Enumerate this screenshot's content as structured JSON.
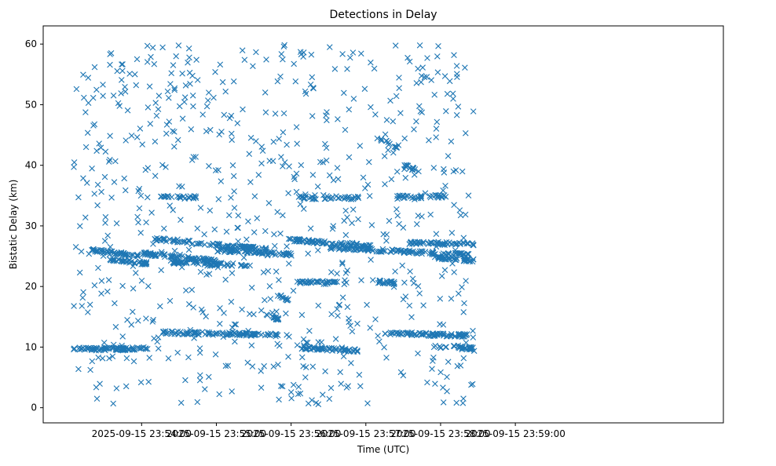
{
  "chart_data": {
    "type": "scatter",
    "title": "Detections in Delay",
    "xlabel": "Time (UTC)",
    "ylabel": "Bistatic Delay (km)",
    "x_unit": "seconds after 2025-09-15 23:54:00 UTC",
    "xlim": [
      -79,
      467
    ],
    "ylim": [
      -2.5,
      63
    ],
    "xticks": [
      0,
      60,
      120,
      180,
      240,
      300
    ],
    "xtick_labels": [
      "2025-09-15 23:54:00",
      "2025-09-15 23:55:00",
      "2025-09-15 23:56:00",
      "2025-09-15 23:57:00",
      "2025-09-15 23:58:00",
      "2025-09-15 23:59:00"
    ],
    "yticks": [
      0,
      10,
      20,
      30,
      40,
      50,
      60
    ],
    "ytick_labels": [
      "0",
      "10",
      "20",
      "30",
      "40",
      "50",
      "60"
    ],
    "marker": "x",
    "color": "#1f77b4",
    "data_range": {
      "t_start": -55,
      "t_end": 267
    },
    "bands": [
      {
        "name": "track-9.7km",
        "t": [
          -55,
          5
        ],
        "delay": [
          9.7,
          9.7
        ],
        "n": 80
      },
      {
        "name": "track-12.3km",
        "t": [
          15,
          110
        ],
        "delay": [
          12.4,
          12.0
        ],
        "n": 100
      },
      {
        "name": "track-9.9km",
        "t": [
          128,
          175
        ],
        "delay": [
          9.9,
          9.4
        ],
        "n": 60
      },
      {
        "name": "track-12.2km",
        "t": [
          195,
          262
        ],
        "delay": [
          12.3,
          11.9
        ],
        "n": 80
      },
      {
        "name": "track-10km-end",
        "t": [
          232,
          267
        ],
        "delay": [
          10.2,
          9.8
        ],
        "n": 30
      },
      {
        "name": "track-23.7km",
        "t": [
          25,
          90
        ],
        "delay": [
          24.0,
          23.5
        ],
        "n": 60
      },
      {
        "name": "track-25.7km",
        "t": [
          60,
          120
        ],
        "delay": [
          26.0,
          25.3
        ],
        "n": 70
      },
      {
        "name": "track-26km-left",
        "t": [
          -40,
          0
        ],
        "delay": [
          26.0,
          25.0
        ],
        "n": 50
      },
      {
        "name": "track-24.5km-left",
        "t": [
          -28,
          5
        ],
        "delay": [
          24.5,
          23.8
        ],
        "n": 40
      },
      {
        "name": "track-27.5km",
        "t": [
          10,
          40
        ],
        "delay": [
          27.8,
          27.4
        ],
        "n": 30
      },
      {
        "name": "track-25km-mid",
        "t": [
          0,
          60
        ],
        "delay": [
          25.5,
          24.2
        ],
        "n": 80
      },
      {
        "name": "track-27km-mid",
        "t": [
          40,
          100
        ],
        "delay": [
          27.2,
          26.2
        ],
        "n": 60
      },
      {
        "name": "track-27.6km",
        "t": [
          115,
          185
        ],
        "delay": [
          27.8,
          26.6
        ],
        "n": 80
      },
      {
        "name": "track-26km-right",
        "t": [
          150,
          265
        ],
        "delay": [
          26.4,
          25.2
        ],
        "n": 110
      },
      {
        "name": "track-27km-right",
        "t": [
          215,
          267
        ],
        "delay": [
          27.2,
          27.0
        ],
        "n": 60
      },
      {
        "name": "track-24.5km-right",
        "t": [
          235,
          267
        ],
        "delay": [
          24.8,
          24.3
        ],
        "n": 40
      },
      {
        "name": "track-20.8km",
        "t": [
          125,
          165
        ],
        "delay": [
          20.8,
          20.5
        ],
        "n": 40
      },
      {
        "name": "track-20.7km-b",
        "t": [
          190,
          205
        ],
        "delay": [
          20.8,
          20.5
        ],
        "n": 20
      },
      {
        "name": "track-34.7km-a",
        "t": [
          15,
          45
        ],
        "delay": [
          34.7,
          34.7
        ],
        "n": 25
      },
      {
        "name": "track-34.7km-b",
        "t": [
          125,
          140
        ],
        "delay": [
          34.8,
          34.6
        ],
        "n": 15
      },
      {
        "name": "track-34.7km-c",
        "t": [
          145,
          175
        ],
        "delay": [
          34.7,
          34.6
        ],
        "n": 25
      },
      {
        "name": "track-34.8km-d",
        "t": [
          205,
          225
        ],
        "delay": [
          34.8,
          34.8
        ],
        "n": 20
      },
      {
        "name": "track-34.8km-e",
        "t": [
          230,
          245
        ],
        "delay": [
          34.9,
          34.8
        ],
        "n": 15
      },
      {
        "name": "track-40km",
        "t": [
          210,
          225
        ],
        "delay": [
          40.0,
          38.8
        ],
        "n": 15
      },
      {
        "name": "track-44km",
        "t": [
          188,
          205
        ],
        "delay": [
          44.6,
          43.0
        ],
        "n": 15
      },
      {
        "name": "track-15km",
        "t": [
          100,
          110
        ],
        "delay": [
          15.2,
          14.6
        ],
        "n": 15
      },
      {
        "name": "track-18.5km",
        "t": [
          108,
          118
        ],
        "delay": [
          18.8,
          17.8
        ],
        "n": 12
      }
    ],
    "scattered_noise": {
      "n": 700,
      "delay_range": [
        0.5,
        60
      ],
      "t_range": [
        -55,
        267
      ]
    }
  }
}
